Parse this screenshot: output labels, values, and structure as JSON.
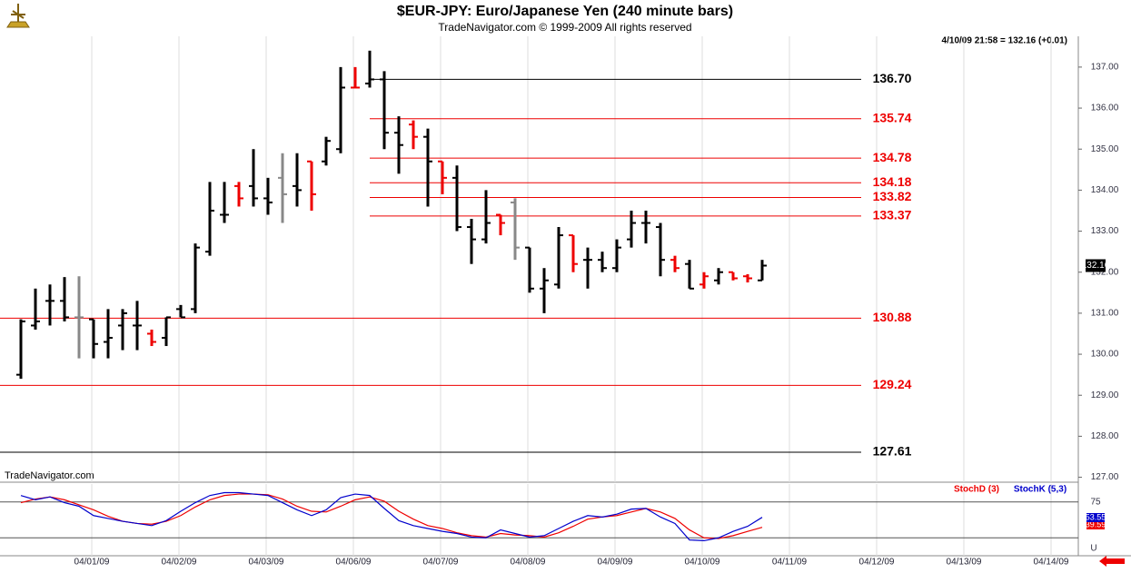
{
  "chart_data": [
    {
      "type": "ohlc",
      "title": "$EUR-JPY:  Euro/Japanese Yen  (240 minute bars)",
      "subtitle": "TradeNavigator.com © 1999-2009 All rights reserved",
      "annotation": "4/10/09 21:58 = 132.16 (+0.01)",
      "watermark": "TradeNavigator.com",
      "open": [
        129.5,
        130.7,
        131.3,
        131.3,
        130.9,
        130.85,
        130.3,
        130.7,
        130.7,
        130.5,
        130.4,
        131.1,
        131.1,
        132.5,
        133.4,
        134.1,
        134.1,
        133.8,
        134.3,
        134.1,
        134.7,
        134.7,
        135.0,
        136.5,
        136.6,
        136.7,
        135.4,
        135.6,
        135.3,
        134.7,
        134.3,
        133.1,
        132.8,
        133.4,
        133.7,
        132.6,
        131.6,
        131.7,
        132.9,
        132.3,
        132.3,
        132.1,
        132.8,
        133.2,
        133.1,
        132.3,
        132.2,
        131.7,
        131.8,
        132.0,
        131.9,
        131.8
      ],
      "high": [
        130.85,
        131.6,
        131.7,
        131.88,
        131.9,
        130.85,
        131.1,
        131.1,
        131.3,
        130.6,
        130.9,
        131.2,
        132.7,
        134.2,
        134.2,
        134.2,
        135.0,
        134.3,
        134.9,
        134.9,
        134.7,
        135.3,
        137.0,
        137.0,
        137.4,
        136.9,
        135.8,
        135.7,
        135.5,
        134.7,
        134.6,
        133.3,
        134.0,
        133.4,
        133.8,
        132.6,
        132.1,
        133.1,
        132.9,
        132.6,
        132.5,
        132.8,
        133.5,
        133.5,
        133.2,
        132.4,
        132.3,
        132.0,
        132.1,
        132.0,
        131.95,
        132.3
      ],
      "low": [
        129.4,
        130.6,
        130.7,
        130.8,
        129.9,
        129.9,
        129.9,
        130.1,
        130.1,
        130.2,
        130.2,
        130.9,
        131.0,
        132.4,
        133.2,
        133.6,
        133.6,
        133.4,
        133.2,
        133.6,
        133.5,
        134.6,
        134.9,
        136.5,
        136.5,
        135.0,
        134.4,
        135.0,
        133.6,
        133.9,
        133.0,
        132.2,
        132.7,
        132.9,
        132.3,
        131.5,
        131.0,
        131.6,
        132.0,
        131.6,
        132.0,
        132.0,
        132.6,
        132.7,
        131.9,
        132.0,
        131.6,
        131.6,
        131.7,
        131.8,
        131.75,
        131.8
      ],
      "close": [
        130.8,
        130.8,
        131.3,
        130.9,
        130.9,
        130.25,
        130.4,
        131.0,
        130.7,
        130.3,
        130.9,
        130.9,
        132.6,
        133.5,
        133.4,
        133.8,
        133.8,
        133.7,
        133.9,
        134.0,
        133.9,
        135.2,
        136.5,
        136.5,
        136.7,
        135.4,
        135.1,
        135.3,
        134.7,
        134.3,
        133.1,
        132.8,
        133.2,
        133.2,
        132.6,
        131.6,
        131.8,
        132.9,
        132.2,
        132.3,
        132.1,
        132.6,
        133.2,
        133.2,
        132.3,
        132.1,
        131.6,
        131.9,
        132.0,
        131.85,
        131.85,
        132.16
      ],
      "colors": [
        "#000",
        "#000",
        "#000",
        "#000",
        "#888",
        "#000",
        "#000",
        "#000",
        "#000",
        "#e00",
        "#000",
        "#000",
        "#000",
        "#000",
        "#000",
        "#e00",
        "#000",
        "#000",
        "#888",
        "#000",
        "#e00",
        "#000",
        "#000",
        "#e00",
        "#000",
        "#000",
        "#000",
        "#e00",
        "#000",
        "#e00",
        "#000",
        "#000",
        "#000",
        "#e00",
        "#888",
        "#000",
        "#000",
        "#000",
        "#e00",
        "#000",
        "#000",
        "#000",
        "#000",
        "#000",
        "#000",
        "#e00",
        "#000",
        "#e00",
        "#000",
        "#e00",
        "#e00",
        "#000"
      ],
      "xlim": [
        -1.4375,
        72.75
      ],
      "xticks": [
        {
          "value": 4.875,
          "label": "04/01/09"
        },
        {
          "value": 10.875,
          "label": "04/02/09"
        },
        {
          "value": 16.875,
          "label": "04/03/09"
        },
        {
          "value": 22.875,
          "label": "04/06/09"
        },
        {
          "value": 28.875,
          "label": "04/07/09"
        },
        {
          "value": 34.875,
          "label": "04/08/09"
        },
        {
          "value": 40.875,
          "label": "04/09/09"
        },
        {
          "value": 46.875,
          "label": "04/10/09"
        },
        {
          "value": 52.875,
          "label": "04/11/09"
        },
        {
          "value": 58.875,
          "label": "04/12/09"
        },
        {
          "value": 64.875,
          "label": "04/13/09"
        },
        {
          "value": 70.875,
          "label": "04/14/09"
        }
      ],
      "ylim": [
        126.88,
        137.75
      ],
      "yticks": [
        {
          "value": 127,
          "label": "127.00"
        },
        {
          "value": 128,
          "label": "128.00"
        },
        {
          "value": 129,
          "label": "129.00"
        },
        {
          "value": 130,
          "label": "130.00"
        },
        {
          "value": 131,
          "label": "131.00"
        },
        {
          "value": 132,
          "label": "132.00"
        },
        {
          "value": 133,
          "label": "133.00"
        },
        {
          "value": 134,
          "label": "134.00"
        },
        {
          "value": 135,
          "label": "135.00"
        },
        {
          "value": 136,
          "label": "136.00"
        },
        {
          "value": 137,
          "label": "137.00"
        }
      ],
      "grid": true,
      "levels": [
        {
          "value": 136.7,
          "label": "136.70",
          "color": "#000",
          "x_from": 24
        },
        {
          "value": 135.74,
          "label": "135.74",
          "color": "#e00",
          "x_from": 24
        },
        {
          "value": 134.78,
          "label": "134.78",
          "color": "#e00",
          "x_from": 24
        },
        {
          "value": 134.18,
          "label": "134.18",
          "color": "#e00",
          "x_from": 24
        },
        {
          "value": 133.82,
          "label": "133.82",
          "color": "#e00",
          "x_from": 24
        },
        {
          "value": 133.37,
          "label": "133.37",
          "color": "#e00",
          "x_from": 24
        },
        {
          "value": 130.88,
          "label": "130.88",
          "color": "#e00",
          "x_from": -1.4375
        },
        {
          "value": 129.24,
          "label": "129.24",
          "color": "#e00",
          "x_from": -1.4375
        },
        {
          "value": 127.61,
          "label": "127.61",
          "color": "#000",
          "x_from": -1.4375
        }
      ]
    },
    {
      "type": "line",
      "series": [
        {
          "name": "StochD (3)",
          "color": "#e00",
          "values": [
            74,
            79,
            82,
            78,
            71,
            64,
            55,
            48,
            45,
            44,
            48,
            56,
            68,
            78,
            84,
            86,
            86,
            85,
            79,
            69,
            62,
            61,
            69,
            78,
            82,
            76,
            62,
            51,
            42,
            38,
            32,
            28,
            26,
            31,
            29,
            28,
            26,
            32,
            41,
            51,
            54,
            56,
            61,
            66,
            61,
            52,
            36,
            25,
            24,
            28,
            34,
            39.59
          ]
        },
        {
          "name": "StochK (5,3)",
          "color": "#00c",
          "values": [
            84,
            78,
            82,
            74,
            69,
            56,
            52,
            48,
            45,
            42,
            49,
            62,
            74,
            84,
            88,
            88,
            86,
            84,
            74,
            64,
            56,
            64,
            81,
            86,
            84,
            66,
            49,
            42,
            38,
            34,
            31,
            26,
            25,
            36,
            31,
            26,
            28,
            38,
            48,
            56,
            54,
            58,
            65,
            66,
            54,
            45,
            22,
            21,
            25,
            34,
            41,
            53.55
          ]
        }
      ],
      "ylim": [
        0,
        100
      ],
      "yticks": [
        75
      ],
      "levels": [
        75,
        25
      ],
      "marker": "U"
    }
  ]
}
